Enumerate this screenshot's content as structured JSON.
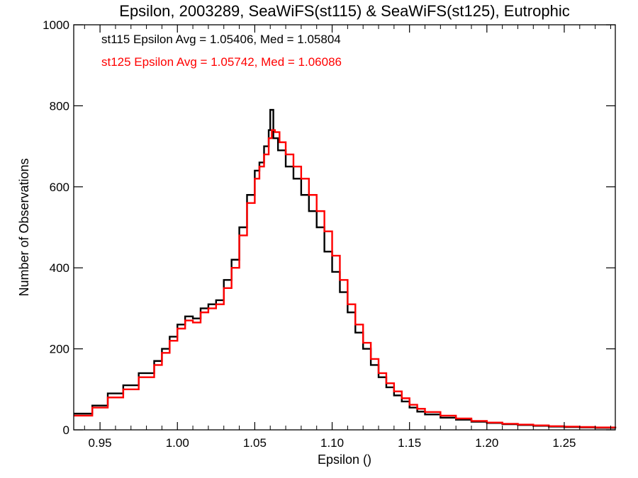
{
  "chart_data": {
    "type": "line",
    "title": "Epsilon, 2003289, SeaWiFS(st115) & SeaWiFS(st125), Eutrophic",
    "xlabel": "Epsilon ()",
    "ylabel": "Number of Observations",
    "xlim": [
      0.933,
      1.283
    ],
    "ylim": [
      0,
      1000
    ],
    "x_ticks": [
      0.95,
      1.0,
      1.05,
      1.1,
      1.15,
      1.2,
      1.25
    ],
    "x_tick_labels": [
      "0.95",
      "1.00",
      "1.05",
      "1.10",
      "1.15",
      "1.20",
      "1.25"
    ],
    "y_ticks": [
      0,
      200,
      400,
      600,
      800,
      1000
    ],
    "y_tick_labels": [
      "0",
      "200",
      "400",
      "600",
      "800",
      "1000"
    ],
    "grid": false,
    "step": "histogram",
    "annotations": [
      {
        "text": "st115 Epsilon Avg = 1.05406, Med = 1.05804",
        "color": "#000000"
      },
      {
        "text": "st125 Epsilon Avg = 1.05742, Med = 1.06086",
        "color": "#ff0000"
      }
    ],
    "series": [
      {
        "color": "#000000",
        "x": [
          0.933,
          0.945,
          0.955,
          0.965,
          0.975,
          0.985,
          0.99,
          0.995,
          1.0,
          1.005,
          1.01,
          1.015,
          1.02,
          1.025,
          1.03,
          1.035,
          1.04,
          1.045,
          1.05,
          1.053,
          1.056,
          1.059,
          1.06,
          1.062,
          1.065,
          1.07,
          1.075,
          1.08,
          1.085,
          1.09,
          1.095,
          1.1,
          1.105,
          1.11,
          1.115,
          1.12,
          1.125,
          1.13,
          1.135,
          1.14,
          1.145,
          1.15,
          1.155,
          1.16,
          1.17,
          1.18,
          1.19,
          1.2,
          1.21,
          1.22,
          1.23,
          1.24,
          1.25,
          1.26,
          1.27,
          1.283
        ],
        "values": [
          40,
          60,
          90,
          110,
          140,
          170,
          200,
          230,
          260,
          280,
          275,
          300,
          310,
          320,
          370,
          420,
          500,
          580,
          640,
          660,
          700,
          740,
          790,
          720,
          690,
          650,
          620,
          580,
          540,
          500,
          440,
          390,
          340,
          290,
          240,
          200,
          160,
          130,
          105,
          85,
          70,
          55,
          45,
          38,
          30,
          25,
          20,
          17,
          14,
          12,
          10,
          8,
          7,
          6,
          5,
          4
        ]
      },
      {
        "color": "#ff0000",
        "x": [
          0.933,
          0.945,
          0.955,
          0.965,
          0.975,
          0.985,
          0.99,
          0.995,
          1.0,
          1.005,
          1.01,
          1.015,
          1.02,
          1.025,
          1.03,
          1.035,
          1.04,
          1.045,
          1.05,
          1.053,
          1.056,
          1.059,
          1.061,
          1.063,
          1.066,
          1.07,
          1.075,
          1.08,
          1.085,
          1.09,
          1.095,
          1.1,
          1.105,
          1.11,
          1.115,
          1.12,
          1.125,
          1.13,
          1.135,
          1.14,
          1.145,
          1.15,
          1.155,
          1.16,
          1.17,
          1.18,
          1.19,
          1.2,
          1.21,
          1.22,
          1.23,
          1.24,
          1.25,
          1.26,
          1.27,
          1.283
        ],
        "values": [
          35,
          55,
          80,
          100,
          130,
          160,
          190,
          220,
          250,
          270,
          265,
          290,
          300,
          310,
          350,
          400,
          480,
          560,
          620,
          650,
          680,
          720,
          740,
          735,
          710,
          680,
          650,
          620,
          580,
          540,
          490,
          430,
          370,
          310,
          260,
          215,
          175,
          140,
          115,
          95,
          78,
          62,
          52,
          44,
          35,
          28,
          22,
          18,
          15,
          13,
          11,
          9,
          8,
          7,
          6,
          5
        ]
      }
    ]
  }
}
